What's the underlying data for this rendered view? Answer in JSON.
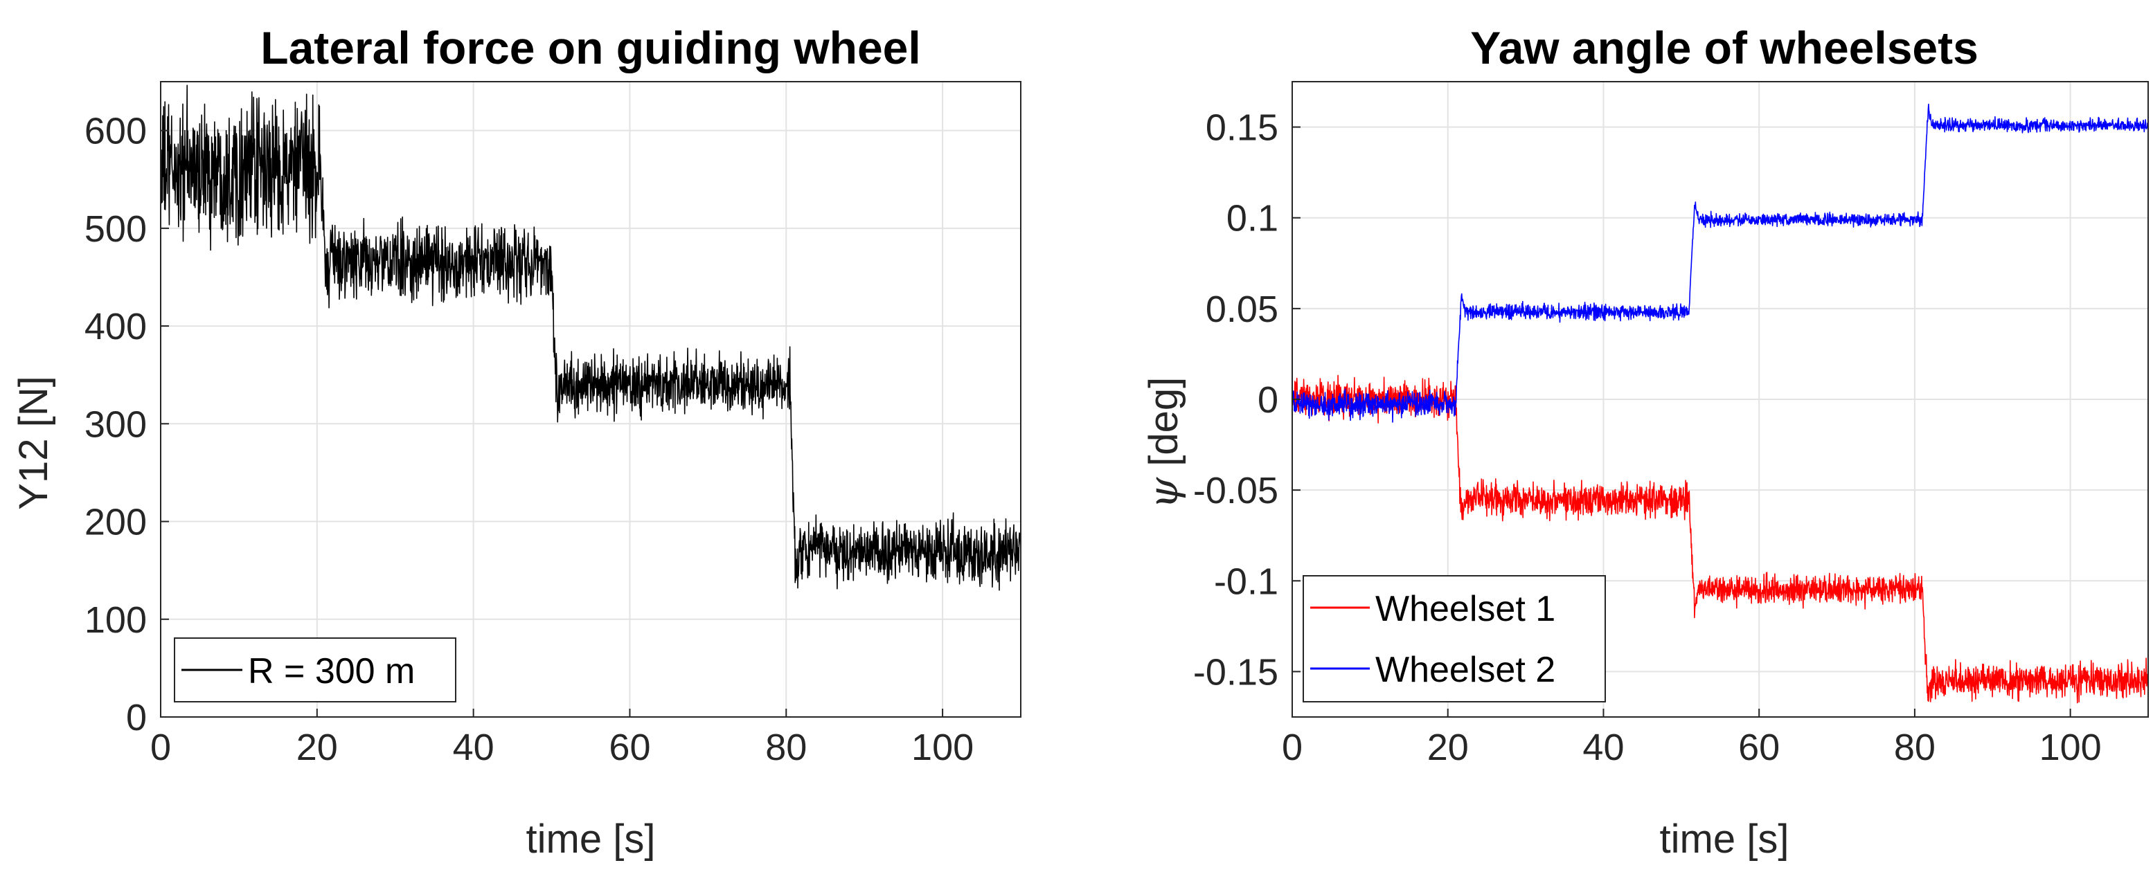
{
  "chart_data": [
    {
      "type": "line",
      "title": "Lateral force on guiding wheel",
      "xlabel": "time [s]",
      "ylabel": "Y12 [N]",
      "xlim": [
        0,
        110
      ],
      "ylim": [
        0,
        650
      ],
      "xticks": [
        0,
        20,
        40,
        60,
        80,
        100
      ],
      "xtick_labels": [
        "0",
        "20",
        "40",
        "60",
        "80",
        "100"
      ],
      "yticks": [
        0,
        100,
        200,
        300,
        400,
        500,
        600
      ],
      "ytick_labels": [
        "0",
        "100",
        "200",
        "300",
        "400",
        "500",
        "600"
      ],
      "grid": true,
      "legend_position": "bottom-left",
      "series": [
        {
          "name": "R = 300 m",
          "color": "#000000",
          "segments": [
            {
              "t_start": 0,
              "t_end": 20.5,
              "mean": 560,
              "amplitude": 80
            },
            {
              "t_start": 20.5,
              "t_end": 50,
              "mean": 465,
              "amplitude": 45
            },
            {
              "t_start": 50,
              "t_end": 80.5,
              "mean": 340,
              "amplitude": 35
            },
            {
              "t_start": 80.5,
              "t_end": 110,
              "mean": 170,
              "amplitude": 35
            }
          ]
        }
      ]
    },
    {
      "type": "line",
      "title": "Yaw angle of wheelsets",
      "xlabel": "time [s]",
      "ylabel_symbol": "ψ",
      "ylabel": " [deg]",
      "xlim": [
        0,
        110
      ],
      "ylim": [
        -0.175,
        0.175
      ],
      "xticks": [
        0,
        20,
        40,
        60,
        80,
        100
      ],
      "xtick_labels": [
        "0",
        "20",
        "40",
        "60",
        "80",
        "100"
      ],
      "yticks": [
        -0.15,
        -0.1,
        -0.05,
        0,
        0.05,
        0.1,
        0.15
      ],
      "ytick_labels": [
        "-0.15",
        "-0.1",
        "-0.05",
        "0",
        "0.05",
        "0.1",
        "0.15"
      ],
      "grid": true,
      "legend_position": "bottom-left",
      "series": [
        {
          "name": "Wheelset 1",
          "color": "#ff0000",
          "segments": [
            {
              "t_start": 0,
              "t_end": 21,
              "mean": 0.0,
              "amplitude": 0.012
            },
            {
              "t_start": 21,
              "t_end": 51,
              "mean": -0.055,
              "amplitude": 0.011
            },
            {
              "t_start": 51,
              "t_end": 81,
              "mean": -0.105,
              "amplitude": 0.009
            },
            {
              "t_start": 81,
              "t_end": 110,
              "mean": -0.155,
              "amplitude": 0.011
            }
          ]
        },
        {
          "name": "Wheelset 2",
          "color": "#0000ff",
          "segments": [
            {
              "t_start": 0,
              "t_end": 21,
              "mean": -0.003,
              "amplitude": 0.008
            },
            {
              "t_start": 21,
              "t_end": 51,
              "mean": 0.048,
              "amplitude": 0.005
            },
            {
              "t_start": 51,
              "t_end": 81,
              "mean": 0.099,
              "amplitude": 0.004
            },
            {
              "t_start": 81,
              "t_end": 110,
              "mean": 0.151,
              "amplitude": 0.004
            }
          ]
        }
      ]
    }
  ]
}
